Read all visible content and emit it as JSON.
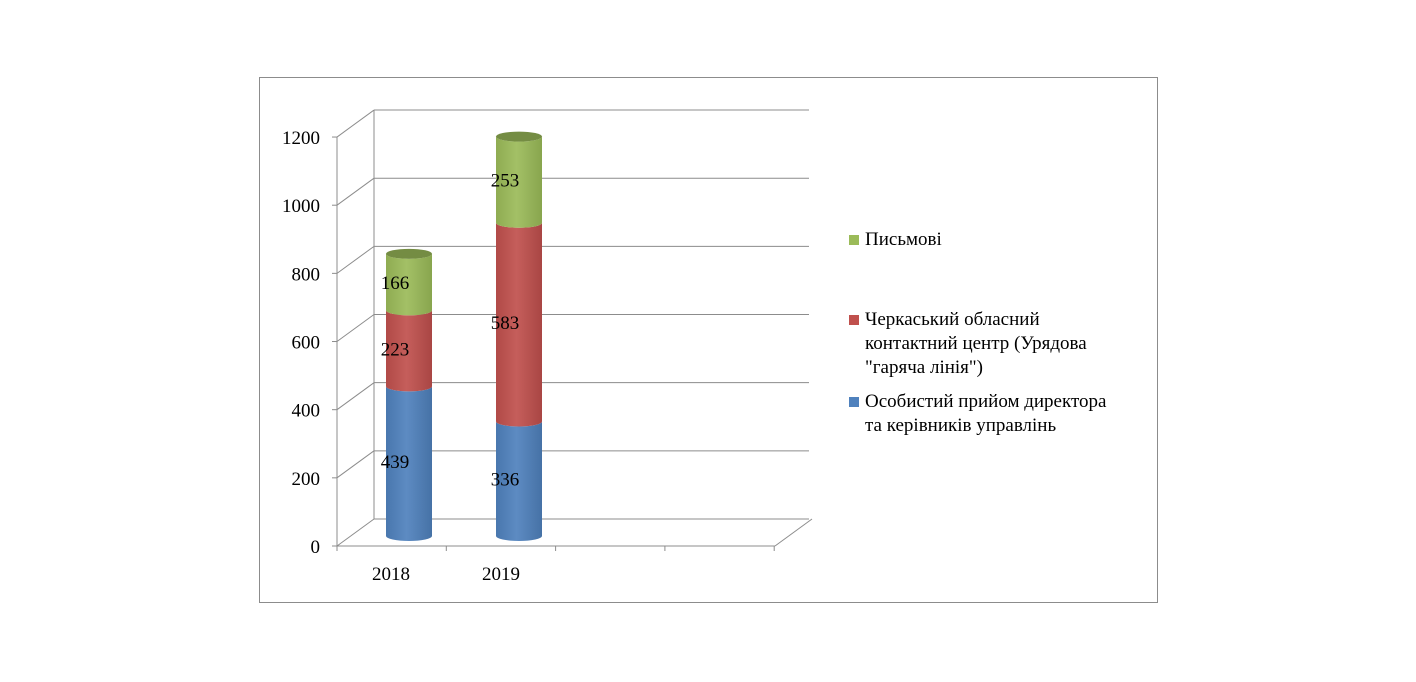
{
  "chart_data": {
    "type": "bar",
    "stacked": true,
    "style": "3d-cylinder",
    "categories": [
      "2018",
      "2019"
    ],
    "series": [
      {
        "name": "Особистий прийом директора та керівників управлінь",
        "color": "#4f81bd",
        "values": [
          439,
          336
        ]
      },
      {
        "name": "Черкаський обласний контактний центр (Урядова \"гаряча лінія\")",
        "color": "#c0504d",
        "values": [
          223,
          583
        ]
      },
      {
        "name": "Письмові",
        "color": "#9bbb59",
        "values": [
          166,
          253
        ]
      }
    ],
    "y_ticks": [
      "0",
      "200",
      "400",
      "600",
      "800",
      "1000",
      "1200"
    ],
    "ylim": [
      0,
      1200
    ],
    "grid": true,
    "legend_position": "right",
    "title": "",
    "xlabel": "",
    "ylabel": ""
  },
  "legend": {
    "items": [
      {
        "label": "Письмові",
        "color": "#9bbb59"
      },
      {
        "label": "Черкаський обласний\nконтактний центр (Урядова\n\"гаряча лінія\")",
        "color": "#c0504d"
      },
      {
        "label": "Особистий прийом директора\nта керівників управлінь",
        "color": "#4f81bd"
      }
    ]
  }
}
